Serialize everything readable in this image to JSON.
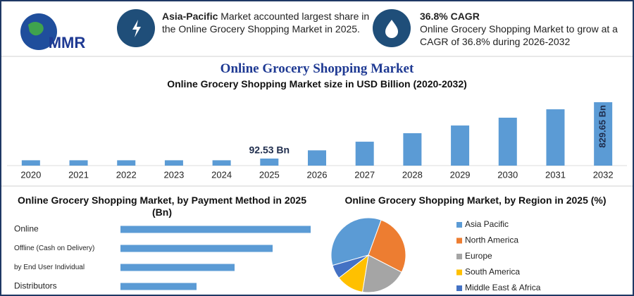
{
  "header": {
    "logo": "MMR",
    "info": [
      {
        "highlight": "Asia-Pacific",
        "text": " Market accounted largest share in the Online Grocery Shopping Market in 2025."
      },
      {
        "title": "36.8% CAGR",
        "text": "Online Grocery Shopping Market to grow at a CAGR of 36.8% during 2026-2032"
      }
    ]
  },
  "chart_data": [
    {
      "type": "bar",
      "title": "Online Grocery Shopping Market",
      "subtitle": "Online Grocery Shopping Market size in USD Billion (2020-2032)",
      "categories": [
        "2020",
        "2021",
        "2022",
        "2023",
        "2024",
        "2025",
        "2026",
        "2027",
        "2028",
        "2029",
        "2030",
        "2031",
        "2032"
      ],
      "values": [
        70,
        70,
        70,
        70,
        70,
        92.53,
        200,
        313,
        424,
        525,
        627,
        737,
        829.65
      ],
      "value_labels": [
        null,
        null,
        null,
        null,
        null,
        "92.53 Bn",
        null,
        null,
        null,
        null,
        null,
        null,
        "829.65 Bn"
      ],
      "color": "#5b9bd5",
      "ylim": [
        0,
        830
      ]
    },
    {
      "type": "bar",
      "orientation": "horizontal",
      "title": "Online Grocery Shopping Market, by Payment Method in 2025 (Bn)",
      "categories": [
        "Online",
        "Offline (Cash on Delivery)",
        "by End User Individual",
        "Distributors"
      ],
      "values": [
        33.0,
        26.4,
        19.8,
        13.2
      ],
      "color": "#5b9bd5",
      "xlim": [
        0,
        33
      ]
    },
    {
      "type": "pie",
      "title": "Online Grocery Shopping Market, by Region in 2025 (%)",
      "categories": [
        "Asia Pacific",
        "North America",
        "Europe",
        "South America",
        "Middle East & Africa"
      ],
      "values": [
        35,
        27,
        20,
        12,
        6
      ],
      "colors": [
        "#5b9bd5",
        "#ed7d31",
        "#a5a5a5",
        "#ffc000",
        "#4472c4"
      ],
      "legend": "right"
    }
  ]
}
